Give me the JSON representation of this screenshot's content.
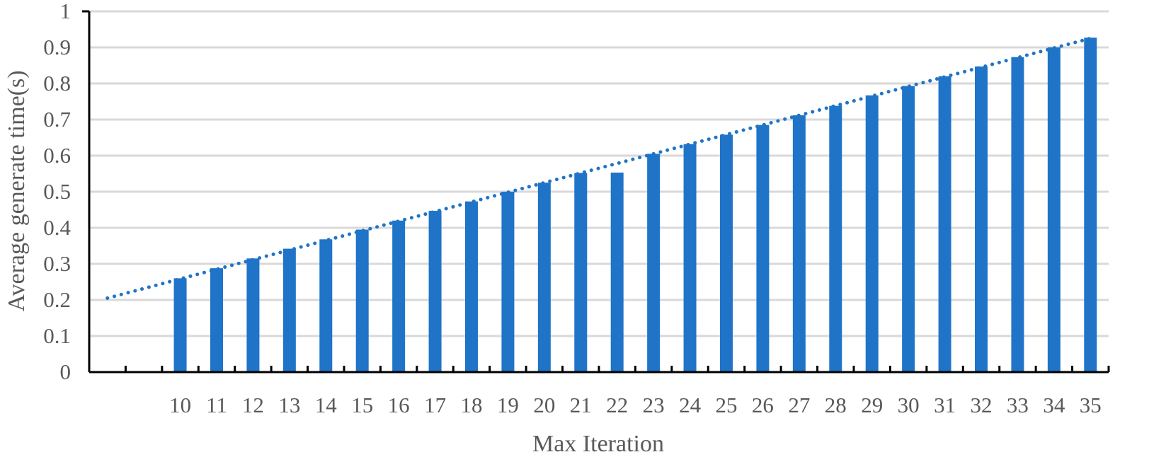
{
  "chart_data": {
    "type": "bar",
    "title": "",
    "xlabel": "Max Iteration",
    "ylabel": "Average generate time(s)",
    "ylim": [
      0,
      1
    ],
    "yticks": [
      "0",
      "0.1",
      "0.2",
      "0.3",
      "0.4",
      "0.5",
      "0.6",
      "0.7",
      "0.8",
      "0.9",
      "1"
    ],
    "grid": "horizontal",
    "bar_color": "#1F74C8",
    "trendline": {
      "type": "linear",
      "style": "dotted",
      "color": "#1F74C8",
      "start_value": 0.205,
      "end_value": 0.925
    },
    "categories": [
      "10",
      "11",
      "12",
      "13",
      "14",
      "15",
      "16",
      "17",
      "18",
      "19",
      "20",
      "21",
      "22",
      "23",
      "24",
      "25",
      "26",
      "27",
      "28",
      "29",
      "30",
      "31",
      "32",
      "33",
      "34",
      "35"
    ],
    "values": [
      0.26,
      0.288,
      0.315,
      0.342,
      0.368,
      0.395,
      0.42,
      0.447,
      0.473,
      0.5,
      0.525,
      0.552,
      0.553,
      0.605,
      0.632,
      0.658,
      0.685,
      0.712,
      0.738,
      0.767,
      0.793,
      0.82,
      0.847,
      0.873,
      0.9,
      0.927
    ],
    "empty_leading_slots": 2
  }
}
